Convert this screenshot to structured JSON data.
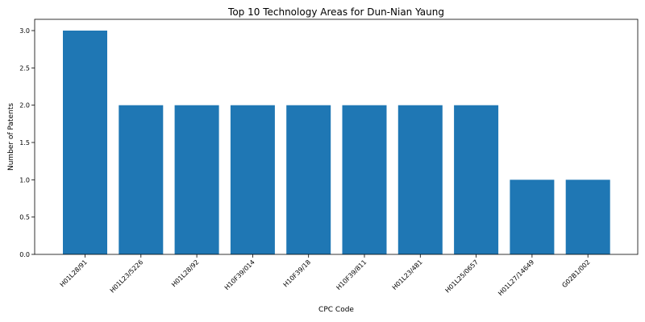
{
  "chart_data": {
    "type": "bar",
    "title": "Top 10 Technology Areas for Dun-Nian Yaung",
    "xlabel": "CPC Code",
    "ylabel": "Number of Patents",
    "categories": [
      "H01L28/91",
      "H01L23/5226",
      "H01L28/92",
      "H10F39/014",
      "H10F39/18",
      "H10F39/811",
      "H01L23/481",
      "H01L25/0657",
      "H01L27/14649",
      "G02B1/002"
    ],
    "values": [
      3,
      2,
      2,
      2,
      2,
      2,
      2,
      2,
      1,
      1
    ],
    "ylim": [
      0,
      3.0
    ],
    "yticks": [
      "0.0",
      "0.5",
      "1.0",
      "1.5",
      "2.0",
      "2.5",
      "3.0"
    ],
    "grid": false,
    "bar_color": "#1f77b4"
  }
}
